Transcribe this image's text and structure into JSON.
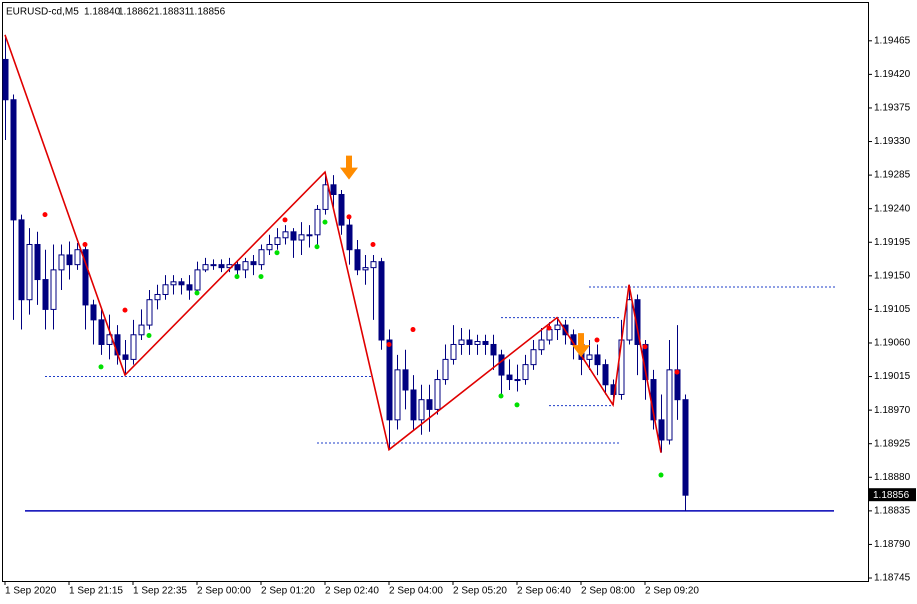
{
  "header": {
    "symbol": "EURUSD-cd,M5",
    "quote": [
      "1.18840",
      "1.18862",
      "1.18831",
      "1.18856"
    ]
  },
  "chart_data": {
    "type": "candlestick",
    "candle_color": "#000080",
    "categories": [
      "1 Sep 2020",
      null,
      null,
      null,
      null,
      null,
      null,
      null,
      "1 Sep 21:15",
      null,
      null,
      null,
      null,
      null,
      null,
      null,
      "1 Sep 22:35",
      null,
      null,
      null,
      null,
      null,
      null,
      null,
      "2 Sep 00:00",
      null,
      null,
      null,
      null,
      null,
      null,
      null,
      "2 Sep 01:20",
      null,
      null,
      null,
      null,
      null,
      null,
      null,
      "2 Sep 02:40",
      null,
      null,
      null,
      null,
      null,
      null,
      null,
      "2 Sep 04:00",
      null,
      null,
      null,
      null,
      null,
      null,
      null,
      "2 Sep 05:20",
      null,
      null,
      null,
      null,
      null,
      null,
      null,
      "2 Sep 06:40",
      null,
      null,
      null,
      null,
      null,
      null,
      null,
      "2 Sep 08:00",
      null,
      null,
      null,
      null,
      null,
      null,
      null,
      "2 Sep 09:20",
      null,
      null,
      null,
      null,
      null
    ],
    "ohlc": [
      [
        1.1944,
        1.19473,
        1.19332,
        1.19386
      ],
      [
        1.19386,
        1.19393,
        1.19091,
        1.19225
      ],
      [
        1.19225,
        1.19232,
        1.19078,
        1.19118
      ],
      [
        1.19118,
        1.19214,
        1.19098,
        1.19192
      ],
      [
        1.19192,
        1.19209,
        1.19111,
        1.19145
      ],
      [
        1.19145,
        1.19185,
        1.19078,
        1.19105
      ],
      [
        1.19105,
        1.19192,
        1.19078,
        1.19158
      ],
      [
        1.19158,
        1.19192,
        1.19131,
        1.19178
      ],
      [
        1.19178,
        1.19196,
        1.19145,
        1.19165
      ],
      [
        1.19165,
        1.19194,
        1.19158,
        1.19185
      ],
      [
        1.19185,
        1.19192,
        1.19078,
        1.19111
      ],
      [
        1.19111,
        1.19118,
        1.19058,
        1.19091
      ],
      [
        1.19091,
        1.19105,
        1.19044,
        1.19058
      ],
      [
        1.19058,
        1.19098,
        1.19038,
        1.19071
      ],
      [
        1.19071,
        1.19084,
        1.19031,
        1.19044
      ],
      [
        1.19044,
        1.19064,
        1.19017,
        1.19038
      ],
      [
        1.19038,
        1.19091,
        1.19031,
        1.19071
      ],
      [
        1.19071,
        1.19105,
        1.19064,
        1.19084
      ],
      [
        1.19084,
        1.19131,
        1.19078,
        1.19118
      ],
      [
        1.19118,
        1.19138,
        1.19105,
        1.19125
      ],
      [
        1.19125,
        1.19151,
        1.19118,
        1.19138
      ],
      [
        1.19138,
        1.19151,
        1.19125,
        1.19142
      ],
      [
        1.19142,
        1.19147,
        1.19125,
        1.19138
      ],
      [
        1.19138,
        1.19151,
        1.19118,
        1.19131
      ],
      [
        1.19131,
        1.19169,
        1.19125,
        1.19158
      ],
      [
        1.19158,
        1.19174,
        1.19155,
        1.19165
      ],
      [
        1.19165,
        1.19172,
        1.19158,
        1.19165
      ],
      [
        1.19165,
        1.19172,
        1.19155,
        1.19161
      ],
      [
        1.19161,
        1.19174,
        1.19155,
        1.19165
      ],
      [
        1.19165,
        1.19169,
        1.19151,
        1.19158
      ],
      [
        1.19158,
        1.19174,
        1.19147,
        1.19169
      ],
      [
        1.19169,
        1.19178,
        1.19151,
        1.19165
      ],
      [
        1.19165,
        1.19192,
        1.19158,
        1.19185
      ],
      [
        1.19185,
        1.19205,
        1.19178,
        1.19192
      ],
      [
        1.19192,
        1.19214,
        1.19185,
        1.19201
      ],
      [
        1.19201,
        1.19218,
        1.19192,
        1.19209
      ],
      [
        1.19209,
        1.19214,
        1.19174,
        1.19198
      ],
      [
        1.19198,
        1.19222,
        1.19178,
        1.19205
      ],
      [
        1.19205,
        1.19218,
        1.19188,
        1.19205
      ],
      [
        1.19205,
        1.19245,
        1.19192,
        1.19239
      ],
      [
        1.19239,
        1.19289,
        1.19232,
        1.19272
      ],
      [
        1.19272,
        1.19285,
        1.19239,
        1.19259
      ],
      [
        1.19259,
        1.19265,
        1.19205,
        1.19218
      ],
      [
        1.19218,
        1.19232,
        1.19165,
        1.19185
      ],
      [
        1.19185,
        1.19198,
        1.19151,
        1.19158
      ],
      [
        1.19158,
        1.19178,
        1.19138,
        1.19161
      ],
      [
        1.19161,
        1.19178,
        1.19091,
        1.19169
      ],
      [
        1.19169,
        1.19174,
        1.19051,
        1.19064
      ],
      [
        1.19064,
        1.19078,
        1.18917,
        1.18957
      ],
      [
        1.18957,
        1.19044,
        1.18944,
        1.19024
      ],
      [
        1.19024,
        1.19051,
        1.18971,
        1.18997
      ],
      [
        1.18997,
        1.19017,
        1.18944,
        1.18957
      ],
      [
        1.18957,
        1.19004,
        1.18937,
        1.18984
      ],
      [
        1.18984,
        1.19004,
        1.18941,
        1.18971
      ],
      [
        1.18971,
        1.19024,
        1.18964,
        1.19011
      ],
      [
        1.19011,
        1.19058,
        1.19004,
        1.19038
      ],
      [
        1.19038,
        1.19084,
        1.19031,
        1.19058
      ],
      [
        1.19058,
        1.1908,
        1.19044,
        1.19064
      ],
      [
        1.19064,
        1.19078,
        1.19044,
        1.19058
      ],
      [
        1.19058,
        1.19071,
        1.19044,
        1.19062
      ],
      [
        1.19062,
        1.19071,
        1.19044,
        1.19058
      ],
      [
        1.19058,
        1.19071,
        1.19024,
        1.19044
      ],
      [
        1.19044,
        1.19051,
        1.18991,
        1.19017
      ],
      [
        1.19017,
        1.19038,
        1.18997,
        1.19011
      ],
      [
        1.19011,
        1.19031,
        1.18995,
        1.19011
      ],
      [
        1.19011,
        1.19044,
        1.19004,
        1.19031
      ],
      [
        1.19031,
        1.19064,
        1.19024,
        1.19051
      ],
      [
        1.19051,
        1.1908,
        1.19044,
        1.19064
      ],
      [
        1.19064,
        1.19088,
        1.19058,
        1.19078
      ],
      [
        1.19078,
        1.19094,
        1.19064,
        1.19084
      ],
      [
        1.19084,
        1.19091,
        1.19058,
        1.19071
      ],
      [
        1.19071,
        1.19078,
        1.19038,
        1.19058
      ],
      [
        1.19058,
        1.19064,
        1.19017,
        1.19038
      ],
      [
        1.19038,
        1.19064,
        1.19024,
        1.19044
      ],
      [
        1.19044,
        1.19058,
        1.19017,
        1.19031
      ],
      [
        1.19031,
        1.19038,
        1.18991,
        1.19004
      ],
      [
        1.19004,
        1.19011,
        1.18977,
        1.18991
      ],
      [
        1.18991,
        1.19091,
        1.18984,
        1.19064
      ],
      [
        1.19064,
        1.19138,
        1.19058,
        1.19118
      ],
      [
        1.19118,
        1.19125,
        1.19017,
        1.19058
      ],
      [
        1.19058,
        1.19064,
        1.18984,
        1.19011
      ],
      [
        1.19011,
        1.19024,
        1.18944,
        1.18957
      ],
      [
        1.18957,
        1.18991,
        1.18913,
        1.1893
      ],
      [
        1.1893,
        1.19064,
        1.18924,
        1.19024
      ],
      [
        1.19024,
        1.19084,
        1.18957,
        1.18984
      ],
      [
        1.18984,
        1.18991,
        1.18835,
        1.18856
      ]
    ],
    "ylim": [
      1.18741,
      1.19517
    ],
    "yticks": [
      1.19465,
      {
        "value": 1.1942,
        "label": "1.19420"
      },
      1.19375,
      {
        "value": 1.1933,
        "label": "1.19330"
      },
      1.19285,
      {
        "value": 1.1924,
        "label": "1.19240"
      },
      1.19195,
      {
        "value": 1.1915,
        "label": "1.19150"
      },
      1.19105,
      {
        "value": 1.1906,
        "label": "1.19060"
      },
      1.19015,
      {
        "value": 1.1897,
        "label": "1.18970"
      },
      1.18925,
      {
        "value": 1.1888,
        "label": "1.18880"
      },
      1.18835,
      {
        "value": 1.1879,
        "label": "1.18790"
      },
      1.18745
    ],
    "grid": false,
    "last_price": 1.18856,
    "zigzag": {
      "color": "#e00000",
      "points": [
        {
          "index": 0,
          "price": 1.19473
        },
        {
          "index": 15,
          "price": 1.19017
        },
        {
          "index": 40,
          "price": 1.19289
        },
        {
          "index": 48,
          "price": 1.18917
        },
        {
          "index": 69,
          "price": 1.19094
        },
        {
          "index": 76,
          "price": 1.18977
        },
        {
          "index": 78,
          "price": 1.19138
        },
        {
          "index": 82,
          "price": 1.18913
        }
      ]
    },
    "levels": {
      "color": "#1e3cc8",
      "lines": [
        {
          "price": 1.19015,
          "from": 5,
          "to": 46
        },
        {
          "price": 1.18926,
          "from": 39,
          "to": 77
        },
        {
          "price": 1.19094,
          "from": 62,
          "to": 77
        },
        {
          "price": 1.18976,
          "from": 68,
          "to": 76
        },
        {
          "price": 1.19135,
          "from": 73,
          "to": 104
        }
      ]
    },
    "support": {
      "price": 1.18835,
      "color": "#0000b4"
    },
    "upper_dots": {
      "color": "#ff0000",
      "points": [
        [
          5,
          1.19232
        ],
        [
          10,
          1.19192
        ],
        [
          15,
          1.19104
        ],
        [
          35,
          1.19225
        ],
        [
          43,
          1.19229
        ],
        [
          46,
          1.19192
        ],
        [
          48,
          1.19058
        ],
        [
          51,
          1.19078
        ],
        [
          68,
          1.1908
        ],
        [
          74,
          1.19064
        ],
        [
          80,
          1.19055
        ],
        [
          84,
          1.19021
        ]
      ]
    },
    "lower_dots": {
      "color": "#00e000",
      "points": [
        [
          12,
          1.19028
        ],
        [
          18,
          1.1907
        ],
        [
          24,
          1.19127
        ],
        [
          29,
          1.19149
        ],
        [
          32,
          1.19149
        ],
        [
          34,
          1.19181
        ],
        [
          39,
          1.19189
        ],
        [
          40,
          1.19222
        ],
        [
          62,
          1.18989
        ],
        [
          64,
          1.18977
        ],
        [
          82,
          1.18883
        ]
      ]
    },
    "arrows": {
      "color": "#ff8c00",
      "points": [
        {
          "index": 43,
          "price": 1.19279
        },
        {
          "index": 72,
          "price": 1.19041
        }
      ]
    }
  }
}
